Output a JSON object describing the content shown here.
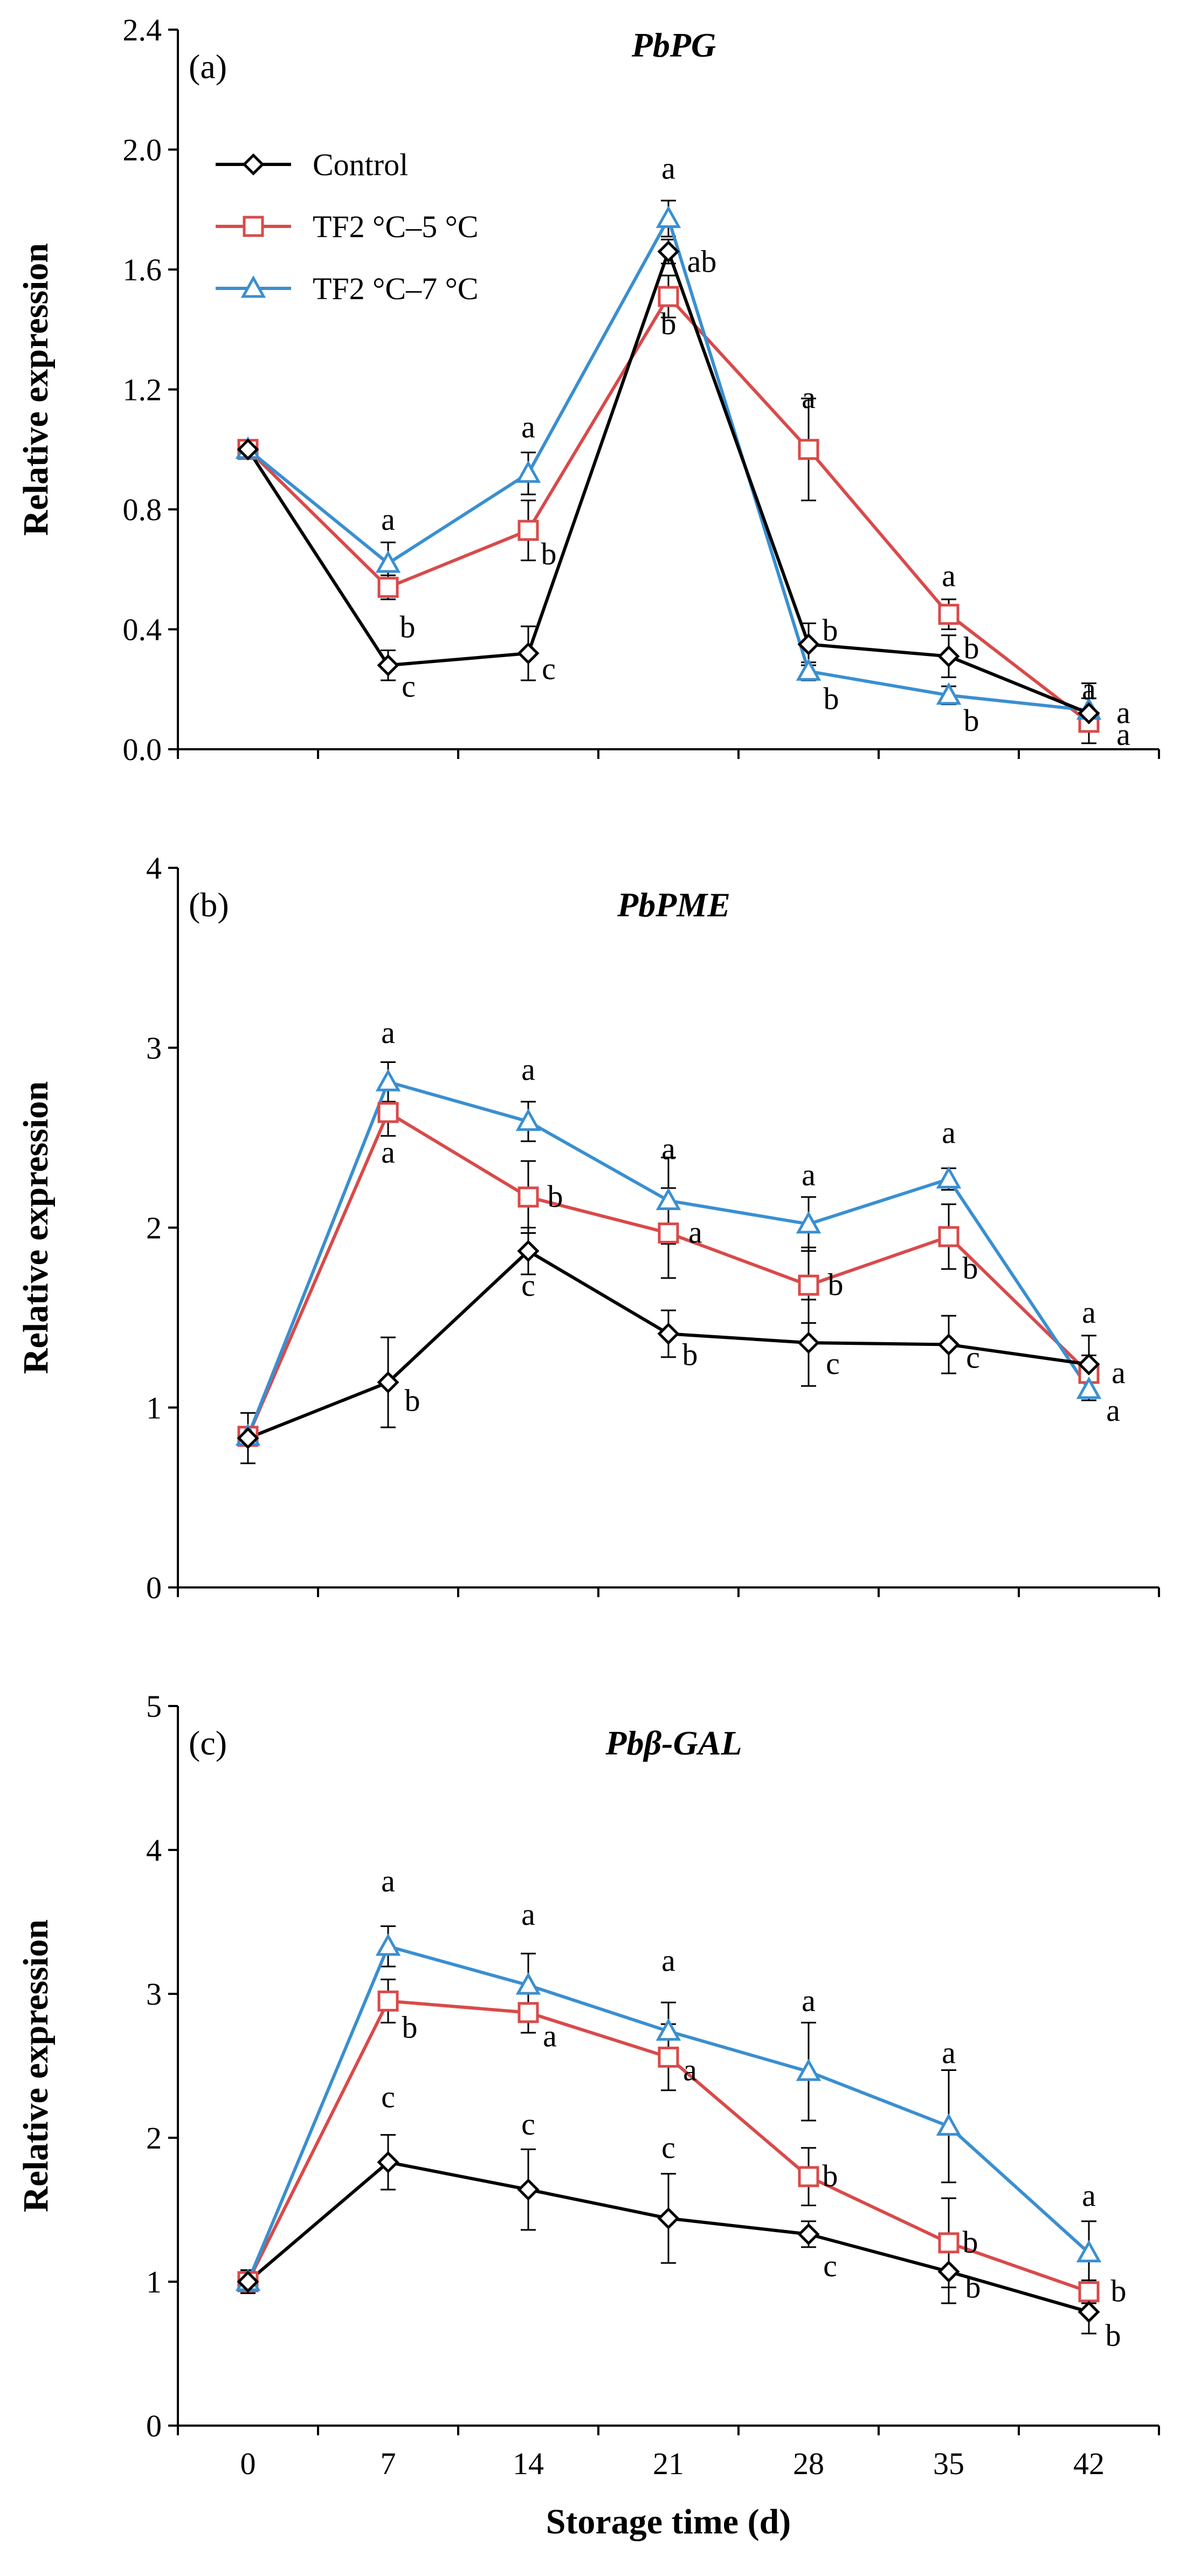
{
  "chart_data": [
    {
      "type": "line",
      "panel_label": "(a)",
      "title": "PbPG",
      "ylabel": "Relative expression",
      "xlabel": "",
      "ylim": [
        0,
        2.4
      ],
      "y_ticks": [
        "0.0",
        "0.4",
        "0.8",
        "1.2",
        "1.6",
        "2.0",
        "2.4"
      ],
      "y_tick_values": [
        0,
        0.4,
        0.8,
        1.2,
        1.6,
        2.0,
        2.4
      ],
      "x_ticks": [],
      "x": [
        0,
        7,
        14,
        21,
        28,
        35,
        42
      ],
      "legend": true,
      "legend_position": "top-left",
      "series": [
        {
          "name": "Control",
          "color": "#000000",
          "marker": "diamond",
          "values": [
            1.0,
            0.28,
            0.32,
            1.66,
            0.35,
            0.31,
            0.12
          ],
          "errors": [
            0.02,
            0.05,
            0.09,
            0.04,
            0.07,
            0.07,
            0.1
          ],
          "sig": [
            "",
            "c",
            "c",
            "ab",
            "b",
            "b",
            "a"
          ]
        },
        {
          "name": "TF2 °C–5 °C",
          "color": "#d94a4a",
          "marker": "square",
          "values": [
            1.0,
            0.54,
            0.73,
            1.51,
            1.0,
            0.45,
            0.09
          ],
          "errors": [
            0.02,
            0.04,
            0.1,
            0.07,
            0.17,
            0.05,
            0.03
          ],
          "sig": [
            "",
            "b",
            "b",
            "b",
            "a",
            "a",
            "a"
          ]
        },
        {
          "name": "TF2 °C–7 °C",
          "color": "#3a8fd0",
          "marker": "triangle",
          "values": [
            1.0,
            0.62,
            0.92,
            1.77,
            0.26,
            0.18,
            0.13
          ],
          "errors": [
            0.02,
            0.07,
            0.07,
            0.06,
            0.03,
            0.03,
            0.04
          ],
          "sig": [
            "",
            "a",
            "a",
            "a",
            "b",
            "b",
            "a"
          ]
        }
      ]
    },
    {
      "type": "line",
      "panel_label": "(b)",
      "title": "PbPME",
      "ylabel": "Relative expression",
      "xlabel": "",
      "ylim": [
        0,
        4
      ],
      "y_ticks": [
        "0",
        "1",
        "2",
        "3",
        "4"
      ],
      "y_tick_values": [
        0,
        1,
        2,
        3,
        4
      ],
      "x_ticks": [],
      "x": [
        0,
        7,
        14,
        21,
        28,
        35,
        42
      ],
      "legend": false,
      "series": [
        {
          "name": "Control",
          "color": "#000000",
          "marker": "diamond",
          "values": [
            0.83,
            1.14,
            1.87,
            1.41,
            1.36,
            1.35,
            1.24
          ],
          "errors": [
            0.14,
            0.25,
            0.13,
            0.13,
            0.24,
            0.16,
            0.16
          ],
          "sig": [
            "",
            "b",
            "c",
            "b",
            "c",
            "c",
            "a"
          ]
        },
        {
          "name": "TF2 °C–5 °C",
          "color": "#d94a4a",
          "marker": "square",
          "values": [
            0.84,
            2.64,
            2.17,
            1.97,
            1.68,
            1.95,
            1.19
          ],
          "errors": [
            0.05,
            0.13,
            0.2,
            0.25,
            0.21,
            0.18,
            0.1
          ],
          "sig": [
            "",
            "a",
            "b",
            "a",
            "b",
            "b",
            "a"
          ]
        },
        {
          "name": "TF2 °C–7 °C",
          "color": "#3a8fd0",
          "marker": "triangle",
          "values": [
            0.84,
            2.81,
            2.59,
            2.15,
            2.02,
            2.27,
            1.1
          ],
          "errors": [
            0.05,
            0.11,
            0.11,
            0.24,
            0.15,
            0.06,
            0.06
          ],
          "sig": [
            "",
            "a",
            "a",
            "a",
            "a",
            "a",
            "a"
          ]
        }
      ]
    },
    {
      "type": "line",
      "panel_label": "(c)",
      "title": "Pbβ-GAL",
      "ylabel": "Relative expression",
      "xlabel": "Storage time (d)",
      "ylim": [
        0,
        5
      ],
      "y_ticks": [
        "0",
        "1",
        "2",
        "3",
        "4",
        "5"
      ],
      "y_tick_values": [
        0,
        1,
        2,
        3,
        4,
        5
      ],
      "x_ticks": [
        "0",
        "7",
        "14",
        "21",
        "28",
        "35",
        "42"
      ],
      "x": [
        0,
        7,
        14,
        21,
        28,
        35,
        42
      ],
      "legend": false,
      "series": [
        {
          "name": "Control",
          "color": "#000000",
          "marker": "diamond",
          "values": [
            1.0,
            1.83,
            1.64,
            1.44,
            1.33,
            1.07,
            0.79
          ],
          "errors": [
            0.08,
            0.19,
            0.28,
            0.31,
            0.09,
            0.22,
            0.15
          ],
          "sig": [
            "",
            "c",
            "c",
            "c",
            "c",
            "b",
            "b"
          ]
        },
        {
          "name": "TF2 °C–5 °C",
          "color": "#d94a4a",
          "marker": "square",
          "values": [
            1.0,
            2.95,
            2.87,
            2.56,
            1.73,
            1.27,
            0.93
          ],
          "errors": [
            0.08,
            0.15,
            0.14,
            0.23,
            0.2,
            0.31,
            0.08
          ],
          "sig": [
            "",
            "b",
            "a",
            "a",
            "b",
            "b",
            "b"
          ]
        },
        {
          "name": "TF2 °C–7 °C",
          "color": "#3a8fd0",
          "marker": "triangle",
          "values": [
            1.0,
            3.33,
            3.06,
            2.74,
            2.46,
            2.08,
            1.2
          ],
          "errors": [
            0.08,
            0.14,
            0.22,
            0.2,
            0.34,
            0.39,
            0.22
          ],
          "sig": [
            "",
            "a",
            "a",
            "a",
            "a",
            "a",
            "a"
          ]
        }
      ]
    }
  ]
}
